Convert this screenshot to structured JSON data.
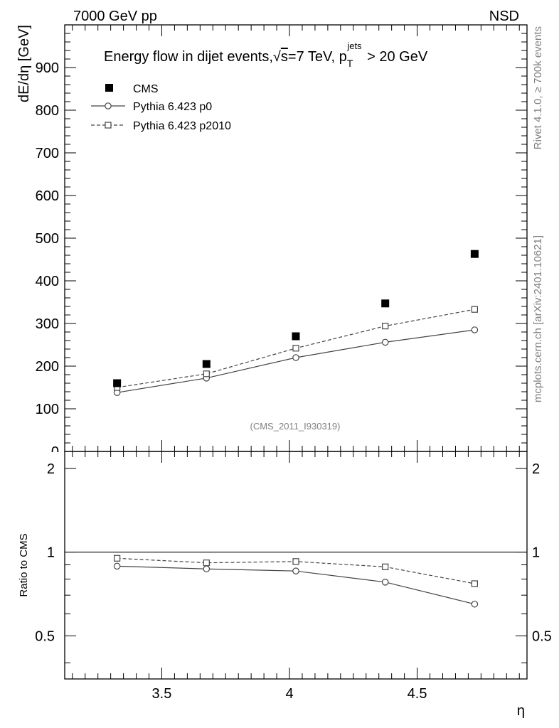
{
  "header": {
    "left": "7000 GeV pp",
    "right": "NSD"
  },
  "side_text": {
    "rivet": "Rivet 4.1.0, ≥ 700k events",
    "mcplots": "mcplots.cern.ch [arXiv:2401.10621]"
  },
  "analysis_id": "(CMS_2011_I930319)",
  "title": {
    "main": "Energy flow in dijet events,",
    "sqrt_symbol": "√",
    "sqrt_arg": "s",
    "energy": "=7 TeV, p",
    "sub": "T",
    "sup": "jets",
    "cut": " > 20 GeV"
  },
  "chart_data": [
    {
      "type": "scatter",
      "title": "Energy flow in dijet events, √s=7 TeV, pT(jets) > 20 GeV",
      "xlabel": "η",
      "ylabel": "dE/dη [GeV]",
      "xlim": [
        3.12,
        4.93
      ],
      "ylim": [
        0,
        1000
      ],
      "ytick_labels": [
        "100",
        "200",
        "300",
        "400",
        "500",
        "600",
        "700",
        "800",
        "900"
      ],
      "ytick_values": [
        100,
        200,
        300,
        400,
        500,
        600,
        700,
        800,
        900
      ],
      "legend_position": "top-left",
      "x": [
        3.325,
        3.675,
        4.025,
        4.375,
        4.725
      ],
      "series": [
        {
          "name": "CMS",
          "marker": "filled-square",
          "values": [
            160,
            205,
            270,
            347,
            463
          ]
        },
        {
          "name": "Pythia 6.423 p0",
          "marker": "open-circle",
          "line": "solid",
          "values": [
            138,
            172,
            220,
            256,
            285
          ]
        },
        {
          "name": "Pythia 6.423 p2010",
          "marker": "open-square",
          "line": "dashed",
          "values": [
            150,
            182,
            242,
            294,
            333
          ]
        }
      ]
    },
    {
      "type": "line",
      "title": "",
      "xlabel": "η",
      "ylabel": "Ratio to CMS",
      "xlim": [
        3.12,
        4.93
      ],
      "ylim": [
        0.35,
        2.3
      ],
      "xtick_labels": [
        "3.5",
        "4",
        "4.5"
      ],
      "xtick_values": [
        3.5,
        4.0,
        4.5
      ],
      "ytick_labels": [
        "0.5",
        "1",
        "2"
      ],
      "ytick_values": [
        0.5,
        1,
        2
      ],
      "reference_line": 1,
      "x": [
        3.325,
        3.675,
        4.025,
        4.375,
        4.725
      ],
      "series": [
        {
          "name": "Pythia 6.423 p0",
          "marker": "open-circle",
          "line": "solid",
          "values": [
            0.89,
            0.87,
            0.855,
            0.78,
            0.65
          ]
        },
        {
          "name": "Pythia 6.423 p2010",
          "marker": "open-square",
          "line": "dashed",
          "values": [
            0.95,
            0.915,
            0.925,
            0.885,
            0.77
          ]
        }
      ]
    }
  ]
}
